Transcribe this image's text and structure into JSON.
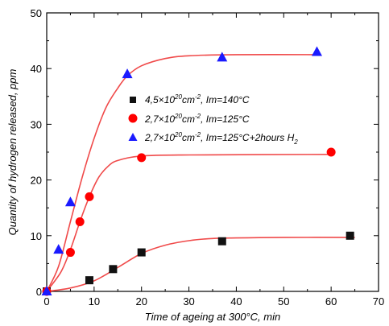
{
  "chart_data": {
    "type": "scatter",
    "xlabel": "Time of ageing at 300°C, min",
    "ylabel": "Quantity of hydrogen released, ppm",
    "xlim": [
      0,
      70
    ],
    "ylim": [
      0,
      50
    ],
    "x_ticks": [
      "0",
      "10",
      "20",
      "30",
      "40",
      "50",
      "60",
      "70"
    ],
    "y_ticks": [
      "0",
      "10",
      "20",
      "30",
      "40",
      "50"
    ],
    "grid": false,
    "legend_position": "center",
    "fit_color": "#f04a4a",
    "series": [
      {
        "name": "4,5×10²⁰cm⁻², Im=140°C",
        "marker": "square",
        "color": "#111111",
        "points": [
          [
            0,
            0
          ],
          [
            9,
            2
          ],
          [
            14,
            4
          ],
          [
            20,
            7
          ],
          [
            37,
            9
          ],
          [
            64,
            10
          ]
        ],
        "fit": [
          [
            0,
            0
          ],
          [
            5,
            0.6
          ],
          [
            10,
            1.9
          ],
          [
            15,
            4.3
          ],
          [
            20,
            6.8
          ],
          [
            25,
            8.3
          ],
          [
            30,
            9.1
          ],
          [
            35,
            9.5
          ],
          [
            40,
            9.6
          ],
          [
            50,
            9.7
          ],
          [
            65,
            9.7
          ]
        ]
      },
      {
        "name": "2,7×10²⁰cm⁻², Im=125°C",
        "marker": "circle",
        "color": "#ff0000",
        "points": [
          [
            0,
            0
          ],
          [
            5,
            7
          ],
          [
            7,
            12.5
          ],
          [
            9,
            17
          ],
          [
            20,
            24
          ],
          [
            60,
            25
          ]
        ],
        "fit": [
          [
            0,
            0
          ],
          [
            3,
            3.5
          ],
          [
            5,
            7.5
          ],
          [
            7,
            12.5
          ],
          [
            9,
            17
          ],
          [
            11,
            20.5
          ],
          [
            13,
            22.5
          ],
          [
            15,
            23.5
          ],
          [
            20,
            24.3
          ],
          [
            30,
            24.5
          ],
          [
            60,
            24.6
          ]
        ]
      },
      {
        "name": "2,7×10²⁰cm⁻², Im=125°C+2hours H₂",
        "marker": "triangle",
        "color": "#1a1aff",
        "points": [
          [
            0,
            0
          ],
          [
            2.5,
            7.5
          ],
          [
            5,
            16
          ],
          [
            17,
            39
          ],
          [
            37,
            42
          ],
          [
            57,
            43
          ]
        ],
        "fit": [
          [
            0,
            0
          ],
          [
            2.5,
            4.5
          ],
          [
            5,
            12.5
          ],
          [
            7.5,
            20.5
          ],
          [
            10,
            27.5
          ],
          [
            12.5,
            33
          ],
          [
            15,
            36.5
          ],
          [
            17,
            38.7
          ],
          [
            20,
            40.5
          ],
          [
            25,
            41.8
          ],
          [
            30,
            42.3
          ],
          [
            40,
            42.5
          ],
          [
            57,
            42.5
          ]
        ]
      }
    ],
    "legend": [
      {
        "main": "4,5×10",
        "sup1": "20",
        "mid": "cm",
        "sup2": "-2",
        "tail": ", Im=140°C",
        "sub": ""
      },
      {
        "main": "2,7×10",
        "sup1": "20",
        "mid": "cm",
        "sup2": "-2",
        "tail": ", Im=125°C",
        "sub": ""
      },
      {
        "main": "2,7×10",
        "sup1": "20",
        "mid": "cm",
        "sup2": "-2",
        "tail": ", Im=125°C+2hours H",
        "sub": "2"
      }
    ]
  }
}
